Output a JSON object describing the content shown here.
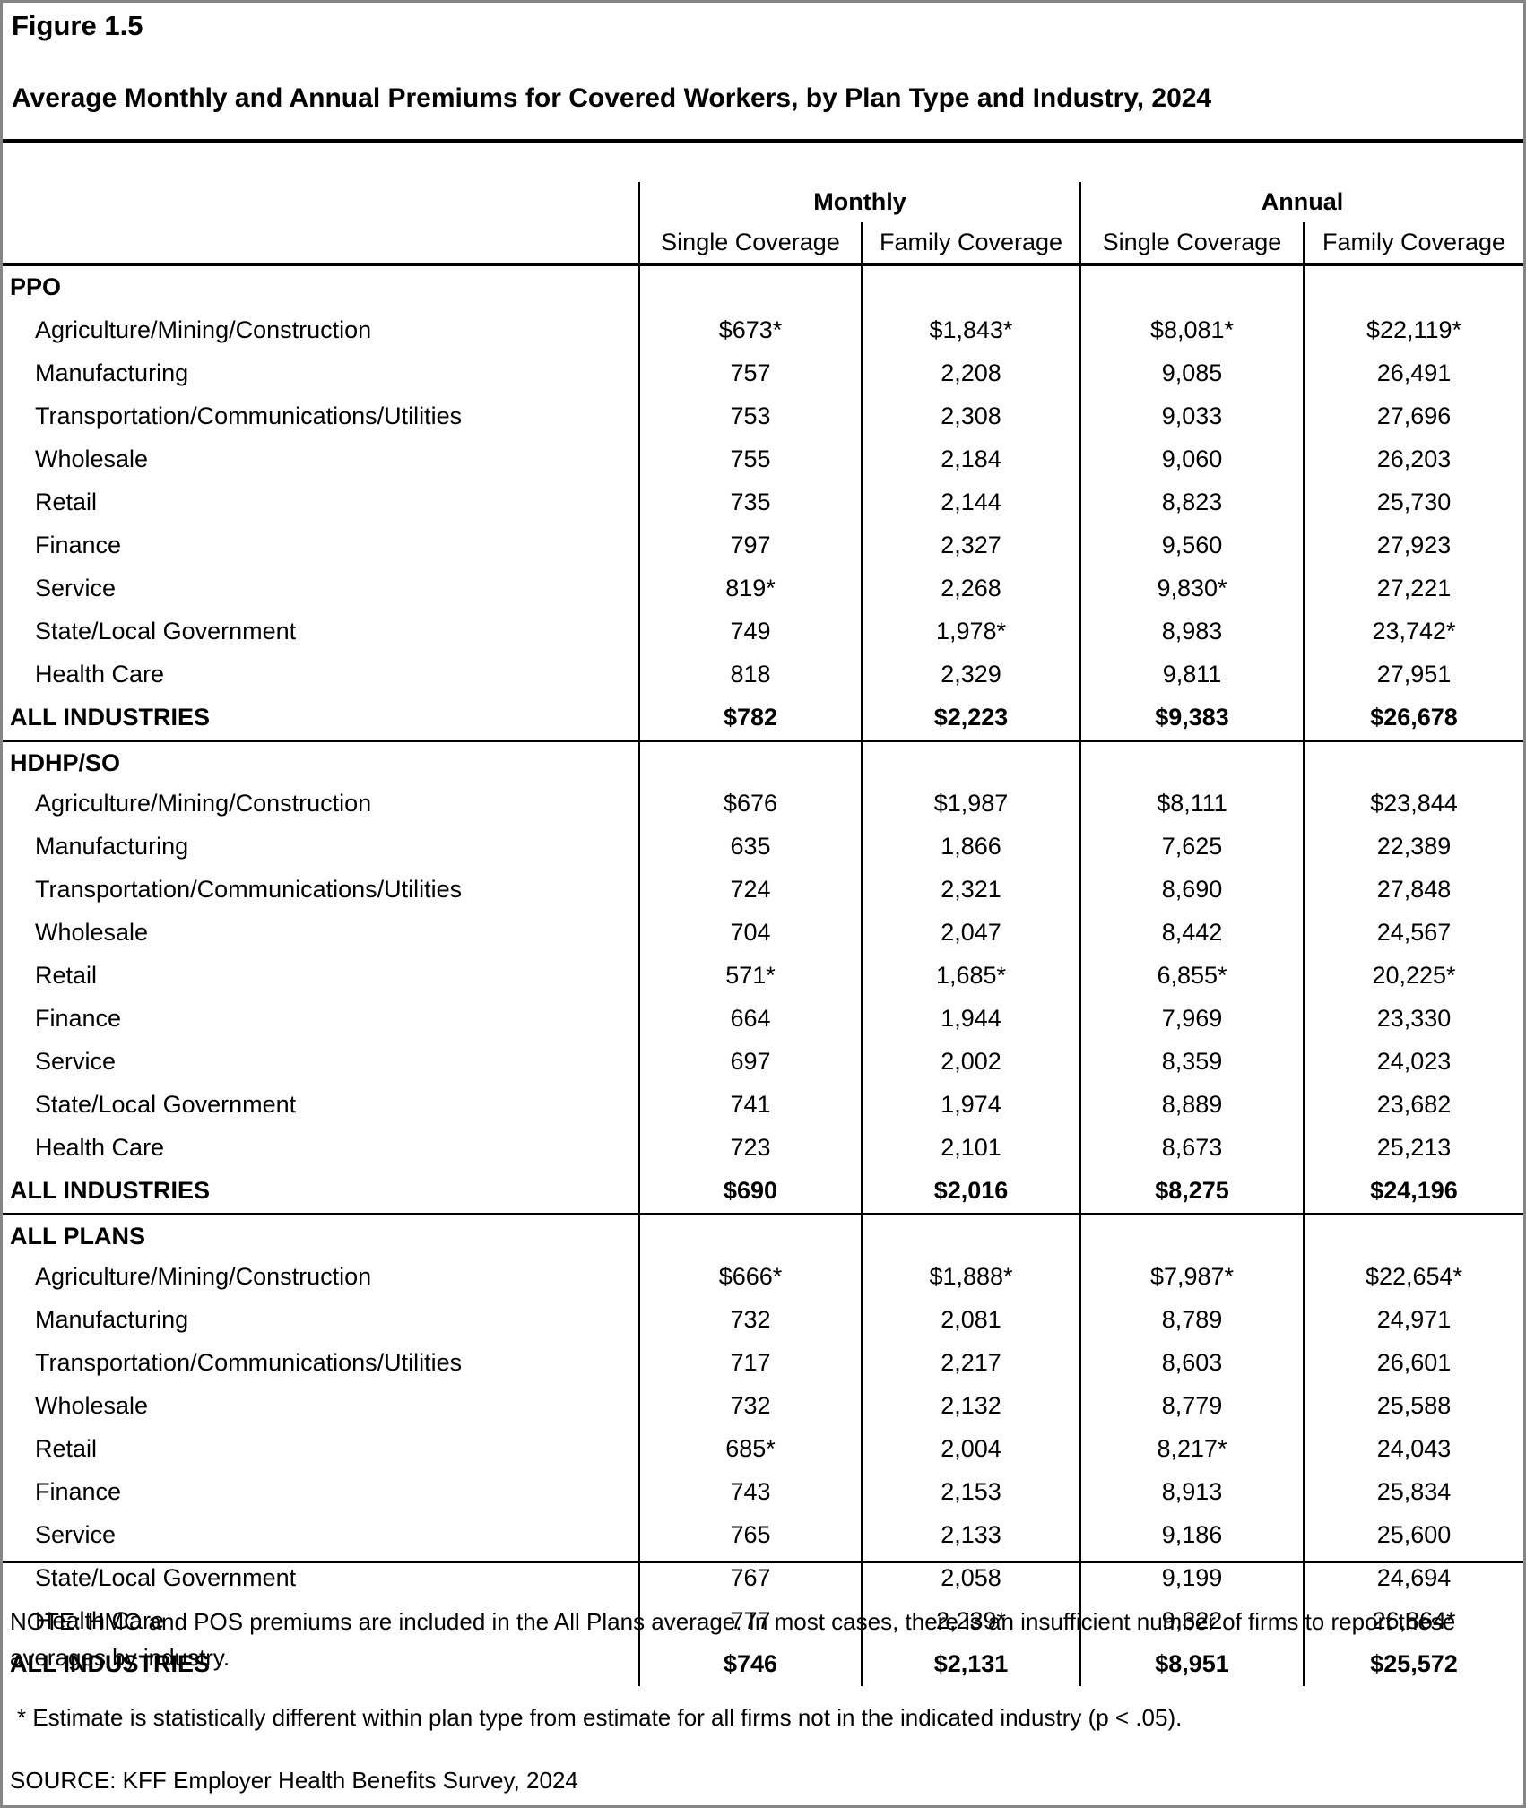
{
  "figure_label": "Figure 1.5",
  "title": "Average Monthly and Annual Premiums for Covered Workers, by Plan Type and Industry, 2024",
  "table": {
    "col_groups": [
      "Monthly",
      "Annual"
    ],
    "sub_headers": [
      "Single Coverage",
      "Family Coverage",
      "Single Coverage",
      "Family Coverage"
    ],
    "sections": [
      {
        "name": "PPO",
        "rows": [
          {
            "label": "Agriculture/Mining/Construction",
            "values": [
              "$673*",
              "$1,843*",
              "$8,081*",
              "$22,119*"
            ]
          },
          {
            "label": "Manufacturing",
            "values": [
              "757",
              "2,208",
              "9,085",
              "26,491"
            ]
          },
          {
            "label": "Transportation/Communications/Utilities",
            "values": [
              "753",
              "2,308",
              "9,033",
              "27,696"
            ]
          },
          {
            "label": "Wholesale",
            "values": [
              "755",
              "2,184",
              "9,060",
              "26,203"
            ]
          },
          {
            "label": "Retail",
            "values": [
              "735",
              "2,144",
              "8,823",
              "25,730"
            ]
          },
          {
            "label": "Finance",
            "values": [
              "797",
              "2,327",
              "9,560",
              "27,923"
            ]
          },
          {
            "label": "Service",
            "values": [
              "819*",
              "2,268",
              "9,830*",
              "27,221"
            ]
          },
          {
            "label": "State/Local Government",
            "values": [
              "749",
              "1,978*",
              "8,983",
              "23,742*"
            ]
          },
          {
            "label": "Health Care",
            "values": [
              "818",
              "2,329",
              "9,811",
              "27,951"
            ]
          }
        ],
        "all": {
          "label": "ALL INDUSTRIES",
          "values": [
            "$782",
            "$2,223",
            "$9,383",
            "$26,678"
          ]
        }
      },
      {
        "name": "HDHP/SO",
        "rows": [
          {
            "label": "Agriculture/Mining/Construction",
            "values": [
              "$676",
              "$1,987",
              "$8,111",
              "$23,844"
            ]
          },
          {
            "label": "Manufacturing",
            "values": [
              "635",
              "1,866",
              "7,625",
              "22,389"
            ]
          },
          {
            "label": "Transportation/Communications/Utilities",
            "values": [
              "724",
              "2,321",
              "8,690",
              "27,848"
            ]
          },
          {
            "label": "Wholesale",
            "values": [
              "704",
              "2,047",
              "8,442",
              "24,567"
            ]
          },
          {
            "label": "Retail",
            "values": [
              "571*",
              "1,685*",
              "6,855*",
              "20,225*"
            ]
          },
          {
            "label": "Finance",
            "values": [
              "664",
              "1,944",
              "7,969",
              "23,330"
            ]
          },
          {
            "label": "Service",
            "values": [
              "697",
              "2,002",
              "8,359",
              "24,023"
            ]
          },
          {
            "label": "State/Local Government",
            "values": [
              "741",
              "1,974",
              "8,889",
              "23,682"
            ]
          },
          {
            "label": "Health Care",
            "values": [
              "723",
              "2,101",
              "8,673",
              "25,213"
            ]
          }
        ],
        "all": {
          "label": "ALL INDUSTRIES",
          "values": [
            "$690",
            "$2,016",
            "$8,275",
            "$24,196"
          ]
        }
      },
      {
        "name": "ALL PLANS",
        "rows": [
          {
            "label": "Agriculture/Mining/Construction",
            "values": [
              "$666*",
              "$1,888*",
              "$7,987*",
              "$22,654*"
            ]
          },
          {
            "label": "Manufacturing",
            "values": [
              "732",
              "2,081",
              "8,789",
              "24,971"
            ]
          },
          {
            "label": "Transportation/Communications/Utilities",
            "values": [
              "717",
              "2,217",
              "8,603",
              "26,601"
            ]
          },
          {
            "label": "Wholesale",
            "values": [
              "732",
              "2,132",
              "8,779",
              "25,588"
            ]
          },
          {
            "label": "Retail",
            "values": [
              "685*",
              "2,004",
              "8,217*",
              "24,043"
            ]
          },
          {
            "label": "Finance",
            "values": [
              "743",
              "2,153",
              "8,913",
              "25,834"
            ]
          },
          {
            "label": "Service",
            "values": [
              "765",
              "2,133",
              "9,186",
              "25,600"
            ]
          },
          {
            "label": "State/Local Government",
            "values": [
              "767",
              "2,058",
              "9,199",
              "24,694"
            ]
          },
          {
            "label": "Health Care",
            "values": [
              "777",
              "2,239*",
              "9,322",
              "26,864*"
            ]
          }
        ],
        "all": {
          "label": "ALL INDUSTRIES",
          "values": [
            "$746",
            "$2,131",
            "$8,951",
            "$25,572"
          ]
        }
      }
    ]
  },
  "notes": {
    "note": "NOTE: HMO and POS premiums are included in the All Plans average. In most cases, there is an insufficient number of firms to report these averages by industry.",
    "asterisk": "* Estimate is statistically different within plan type from estimate for all firms not in the indicated industry (p < .05).",
    "source": "SOURCE: KFF Employer Health Benefits Survey, 2024"
  }
}
